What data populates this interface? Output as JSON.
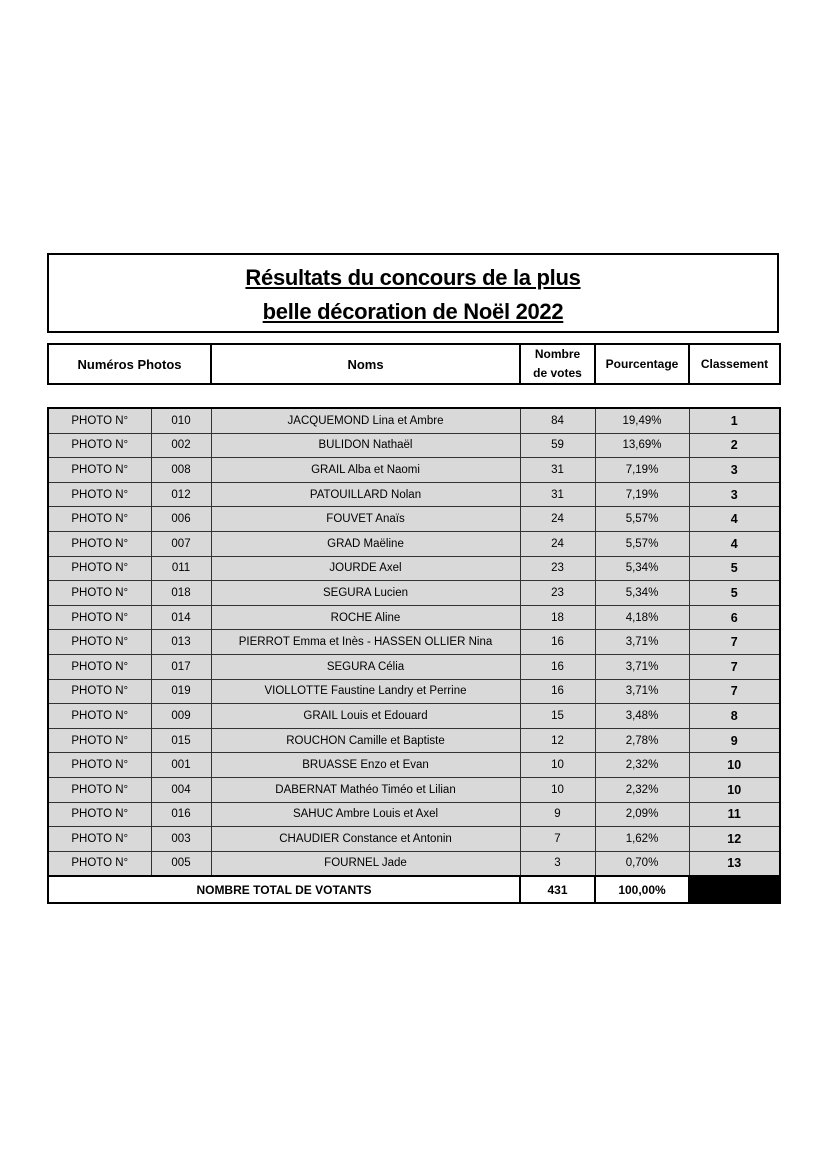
{
  "title": {
    "line1": "Résultats du concours de la plus",
    "line2": "belle décoration de Noël 2022"
  },
  "header": {
    "photos": "Numéros Photos",
    "names": "Noms",
    "votes_line1": "Nombre",
    "votes_line2": "de votes",
    "percent": "Pourcentage",
    "rank": "Classement"
  },
  "rows": [
    {
      "label": "PHOTO N°",
      "num": "010",
      "name": "JACQUEMOND Lina et Ambre",
      "votes": "84",
      "pct": "19,49%",
      "rank": "1"
    },
    {
      "label": "PHOTO N°",
      "num": "002",
      "name": "BULIDON Nathaël",
      "votes": "59",
      "pct": "13,69%",
      "rank": "2"
    },
    {
      "label": "PHOTO N°",
      "num": "008",
      "name": "GRAIL Alba et Naomi",
      "votes": "31",
      "pct": "7,19%",
      "rank": "3"
    },
    {
      "label": "PHOTO N°",
      "num": "012",
      "name": "PATOUILLARD Nolan",
      "votes": "31",
      "pct": "7,19%",
      "rank": "3"
    },
    {
      "label": "PHOTO N°",
      "num": "006",
      "name": "FOUVET Anaïs",
      "votes": "24",
      "pct": "5,57%",
      "rank": "4"
    },
    {
      "label": "PHOTO N°",
      "num": "007",
      "name": "GRAD Maëline",
      "votes": "24",
      "pct": "5,57%",
      "rank": "4"
    },
    {
      "label": "PHOTO N°",
      "num": "011",
      "name": "JOURDE Axel",
      "votes": "23",
      "pct": "5,34%",
      "rank": "5"
    },
    {
      "label": "PHOTO N°",
      "num": "018",
      "name": "SEGURA Lucien",
      "votes": "23",
      "pct": "5,34%",
      "rank": "5"
    },
    {
      "label": "PHOTO N°",
      "num": "014",
      "name": "ROCHE Aline",
      "votes": "18",
      "pct": "4,18%",
      "rank": "6"
    },
    {
      "label": "PHOTO N°",
      "num": "013",
      "name": "PIERROT Emma et Inès - HASSEN OLLIER Nina",
      "votes": "16",
      "pct": "3,71%",
      "rank": "7"
    },
    {
      "label": "PHOTO N°",
      "num": "017",
      "name": "SEGURA Célia",
      "votes": "16",
      "pct": "3,71%",
      "rank": "7"
    },
    {
      "label": "PHOTO N°",
      "num": "019",
      "name": "VIOLLOTTE Faustine Landry et Perrine",
      "votes": "16",
      "pct": "3,71%",
      "rank": "7"
    },
    {
      "label": "PHOTO N°",
      "num": "009",
      "name": "GRAIL Louis et Edouard",
      "votes": "15",
      "pct": "3,48%",
      "rank": "8"
    },
    {
      "label": "PHOTO N°",
      "num": "015",
      "name": "ROUCHON Camille et Baptiste",
      "votes": "12",
      "pct": "2,78%",
      "rank": "9"
    },
    {
      "label": "PHOTO N°",
      "num": "001",
      "name": "BRUASSE Enzo et Evan",
      "votes": "10",
      "pct": "2,32%",
      "rank": "10"
    },
    {
      "label": "PHOTO N°",
      "num": "004",
      "name": "DABERNAT Mathéo Timéo et Lilian",
      "votes": "10",
      "pct": "2,32%",
      "rank": "10"
    },
    {
      "label": "PHOTO N°",
      "num": "016",
      "name": "SAHUC Ambre Louis et Axel",
      "votes": "9",
      "pct": "2,09%",
      "rank": "11"
    },
    {
      "label": "PHOTO N°",
      "num": "003",
      "name": "CHAUDIER Constance et Antonin",
      "votes": "7",
      "pct": "1,62%",
      "rank": "12"
    },
    {
      "label": "PHOTO N°",
      "num": "005",
      "name": "FOURNEL Jade",
      "votes": "3",
      "pct": "0,70%",
      "rank": "13"
    }
  ],
  "total": {
    "label": "NOMBRE TOTAL DE VOTANTS",
    "votes": "431",
    "pct": "100,00%"
  }
}
